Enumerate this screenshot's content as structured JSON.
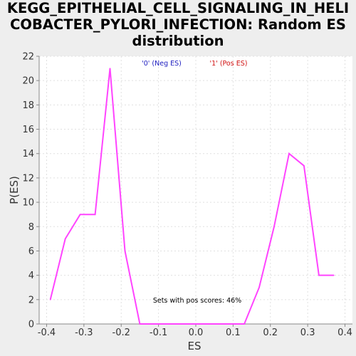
{
  "title_lines": [
    "KEGG_EPITHELIAL_CELL_SIGNALING_IN_HELI",
    "COBACTER_PYLORI_INFECTION: Random ES",
    "distribution"
  ],
  "colors": {
    "background": "#eeeeee",
    "plot_background": "#ffffff",
    "series_line": "#ff44ff",
    "grid": "#e0e0e0",
    "legend_neg": "#2020c0",
    "legend_pos": "#d01010"
  },
  "chart_data": {
    "type": "line",
    "title": "KEGG_EPITHELIAL_CELL_SIGNALING_IN_HELICOBACTER_PYLORI_INFECTION: Random ES distribution",
    "xlabel": "ES",
    "ylabel": "P(ES)",
    "xlim": [
      -0.42,
      0.42
    ],
    "ylim": [
      0,
      22
    ],
    "xticks": [
      -0.4,
      -0.3,
      -0.2,
      -0.1,
      0.0,
      0.1,
      0.2,
      0.3,
      0.4
    ],
    "xtick_labels": [
      "-0.4",
      "-0.3",
      "-0.2",
      "-0.1",
      "0.0",
      "0.1",
      "0.2",
      "0.3",
      "0.4"
    ],
    "yticks": [
      0,
      2,
      4,
      6,
      8,
      10,
      12,
      14,
      16,
      18,
      20,
      22
    ],
    "ytick_labels": [
      "0",
      "2",
      "4",
      "6",
      "8",
      "10",
      "12",
      "14",
      "16",
      "18",
      "20",
      "22"
    ],
    "grid": true,
    "legend": {
      "placement": "top-center",
      "entries": [
        "'0' (Neg ES)",
        "'1' (Pos ES)"
      ]
    },
    "annotation": "Sets with pos scores: 46%",
    "series": [
      {
        "x": [
          -0.39,
          -0.35,
          -0.31,
          -0.27,
          -0.23,
          -0.19,
          -0.15,
          -0.11,
          -0.07,
          -0.03,
          0.01,
          0.05,
          0.09,
          0.13,
          0.17,
          0.21,
          0.25,
          0.29,
          0.33,
          0.37
        ],
        "y": [
          2,
          7,
          9,
          9,
          21,
          6,
          0,
          0,
          0,
          0,
          0,
          0,
          0,
          0,
          3,
          8,
          14,
          13,
          4,
          4
        ]
      }
    ]
  }
}
